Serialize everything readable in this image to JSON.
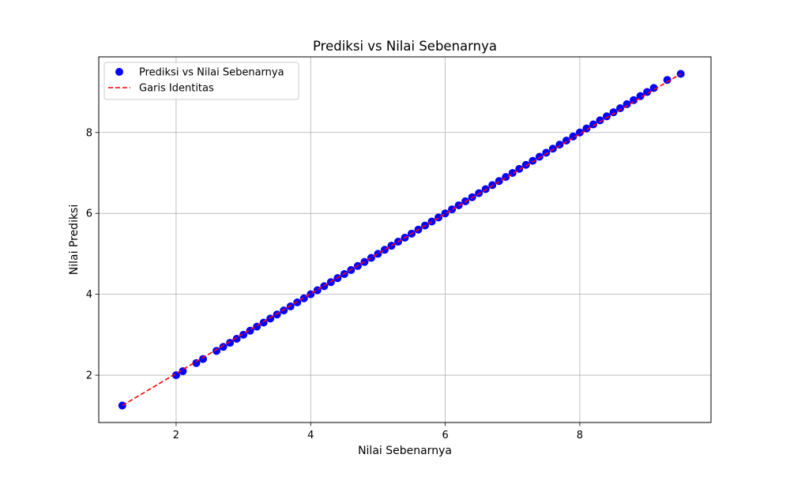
{
  "chart_data": {
    "type": "scatter",
    "title": "Prediksi vs Nilai Sebenarnya",
    "xlabel": "Nilai Sebenarnya",
    "ylabel": "Nilai Prediksi",
    "xlim": [
      0.85,
      9.95
    ],
    "ylim": [
      0.83,
      9.87
    ],
    "xticks": [
      2,
      4,
      6,
      8
    ],
    "yticks": [
      2,
      4,
      6,
      8
    ],
    "xtick_labels": [
      "2",
      "4",
      "6",
      "8"
    ],
    "ytick_labels": [
      "2",
      "4",
      "6",
      "8"
    ],
    "grid": true,
    "legend": {
      "placement": "top-left",
      "entries": [
        "Prediksi vs Nilai Sebenarnya",
        "Garis Identitas"
      ]
    },
    "series": [
      {
        "name": "Prediksi vs Nilai Sebenarnya",
        "kind": "scatter",
        "color": "#0000ff",
        "x": [
          1.2,
          2.0,
          2.1,
          2.3,
          2.4,
          2.6,
          2.7,
          2.8,
          2.9,
          3.0,
          3.1,
          3.2,
          3.3,
          3.4,
          3.5,
          3.6,
          3.7,
          3.8,
          3.9,
          4.0,
          4.1,
          4.2,
          4.3,
          4.4,
          4.5,
          4.6,
          4.7,
          4.8,
          4.9,
          5.0,
          5.1,
          5.2,
          5.3,
          5.4,
          5.5,
          5.6,
          5.7,
          5.8,
          5.9,
          6.0,
          6.1,
          6.2,
          6.3,
          6.4,
          6.5,
          6.6,
          6.7,
          6.8,
          6.9,
          7.0,
          7.1,
          7.2,
          7.3,
          7.4,
          7.5,
          7.6,
          7.7,
          7.8,
          7.9,
          8.0,
          8.1,
          8.2,
          8.3,
          8.4,
          8.5,
          8.6,
          8.7,
          8.8,
          8.9,
          9.0,
          9.1,
          9.3,
          9.5
        ],
        "y": [
          1.25,
          2.0,
          2.1,
          2.3,
          2.4,
          2.6,
          2.7,
          2.8,
          2.9,
          3.0,
          3.1,
          3.2,
          3.3,
          3.4,
          3.5,
          3.6,
          3.7,
          3.8,
          3.9,
          4.0,
          4.1,
          4.2,
          4.3,
          4.4,
          4.5,
          4.6,
          4.7,
          4.8,
          4.9,
          5.0,
          5.1,
          5.2,
          5.3,
          5.4,
          5.5,
          5.6,
          5.7,
          5.8,
          5.9,
          6.0,
          6.1,
          6.2,
          6.3,
          6.4,
          6.5,
          6.6,
          6.7,
          6.8,
          6.9,
          7.0,
          7.1,
          7.2,
          7.3,
          7.4,
          7.5,
          7.6,
          7.7,
          7.8,
          7.9,
          8.0,
          8.1,
          8.2,
          8.3,
          8.4,
          8.5,
          8.6,
          8.7,
          8.8,
          8.9,
          9.0,
          9.1,
          9.3,
          9.45
        ]
      },
      {
        "name": "Garis Identitas",
        "kind": "line",
        "style": "dashed",
        "color": "#ff0000",
        "x": [
          1.2,
          9.5
        ],
        "y": [
          1.25,
          9.45
        ]
      }
    ]
  }
}
